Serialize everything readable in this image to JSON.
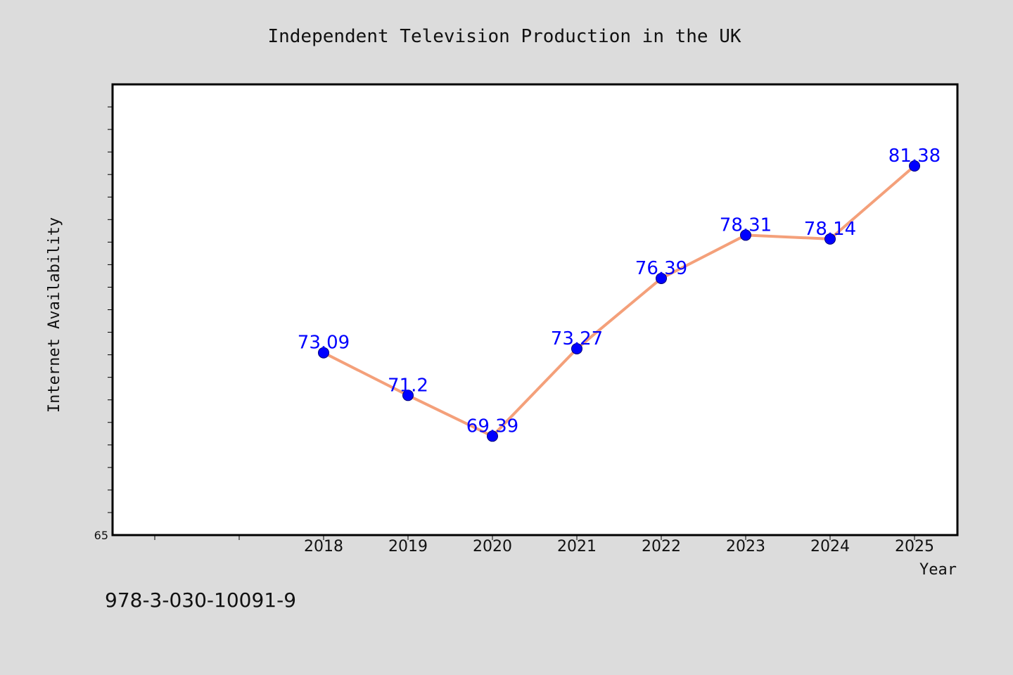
{
  "chart_data": {
    "type": "line",
    "title": "Independent Television Production in the UK",
    "xlabel": "Year",
    "ylabel": "Internet Availability",
    "x": [
      "2018",
      "2019",
      "2020",
      "2021",
      "2022",
      "2023",
      "2024",
      "2025"
    ],
    "series": [
      {
        "values": [
          73.09,
          71.2,
          69.39,
          73.27,
          76.39,
          78.31,
          78.14,
          81.38
        ],
        "labels": [
          "73.09",
          "71.2",
          "69.39",
          "73.27",
          "76.39",
          "78.31",
          "78.14",
          "81.38"
        ]
      }
    ],
    "ylim": [
      65,
      85
    ],
    "y_tick_labels": [
      "65"
    ],
    "grid": false,
    "legend": "none",
    "footnote": "978-3-030-10091-9",
    "colors": {
      "line": "#f4a07a",
      "marker": "#0000ff",
      "data_label": "#0000ff",
      "figure_bg": "#dcdcdc",
      "plot_bg": "#ffffff",
      "frame": "#000000"
    }
  }
}
